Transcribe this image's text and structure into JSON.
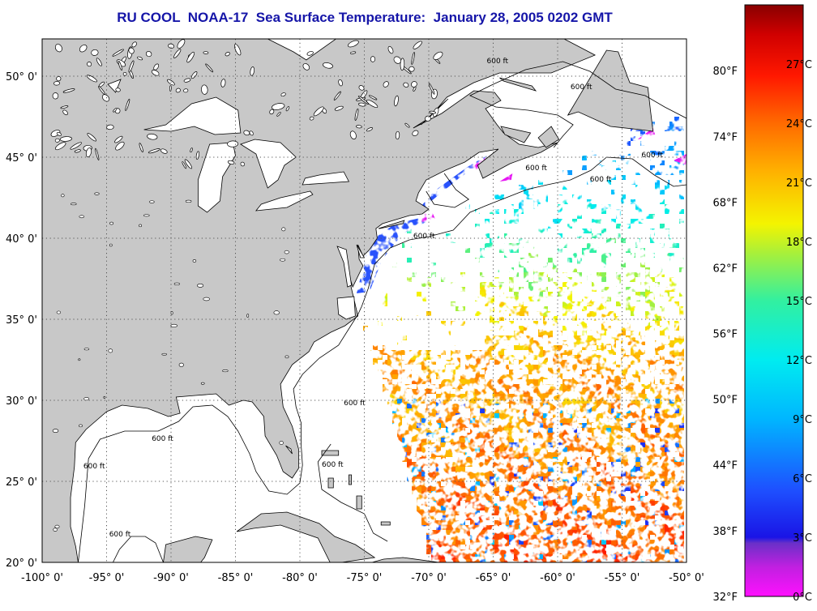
{
  "title": "RU COOL  NOAA-17  Sea Surface Temperature:  January 28, 2005 0202 GMT",
  "colors": {
    "title": "#1515a8",
    "land": "#c8c8c8",
    "ocean_no_data": "#ffffff",
    "coast": "#000000",
    "grid": "#555555"
  },
  "map": {
    "projection": "equirectangular",
    "lon_range": [
      -100,
      -50
    ],
    "lat_range": [
      20,
      52.3
    ],
    "grid_lines": "dotted",
    "lon_ticks": [
      "-100° 0'",
      "-95° 0'",
      "-90° 0'",
      "-85° 0'",
      "-80° 0'",
      "-75° 0'",
      "-70° 0'",
      "-65° 0'",
      "-60° 0'",
      "-55° 0'",
      "-50° 0'"
    ],
    "lat_ticks": [
      "20° 0'",
      "25° 0'",
      "30° 0'",
      "35° 0'",
      "40° 0'",
      "45° 0'",
      "50° 0'"
    ],
    "contour_label": "600 ft",
    "contour_labels": [
      {
        "text": "600 ft",
        "lon": -71.2,
        "lat": 40.0
      },
      {
        "text": "600 ft",
        "lon": -62.5,
        "lat": 44.2
      },
      {
        "text": "600 ft",
        "lon": -76.6,
        "lat": 29.7
      },
      {
        "text": "600 ft",
        "lon": -91.5,
        "lat": 27.5
      },
      {
        "text": "600 ft",
        "lon": -96.8,
        "lat": 25.8
      },
      {
        "text": "600 ft",
        "lon": -78.3,
        "lat": 25.9
      },
      {
        "text": "600 ft",
        "lon": -94.8,
        "lat": 21.6
      },
      {
        "text": "600 ft",
        "lon": -53.5,
        "lat": 45.0
      },
      {
        "text": "600 ft",
        "lon": -59.0,
        "lat": 49.2
      },
      {
        "text": "600 ft",
        "lon": -65.5,
        "lat": 50.8
      },
      {
        "text": "600 ft",
        "lon": -57.5,
        "lat": 43.5
      }
    ]
  },
  "colorbar": {
    "fahrenheit_labels": [
      {
        "text": "32°F",
        "value_c": 0
      },
      {
        "text": "38°F",
        "value_c": 3.33
      },
      {
        "text": "44°F",
        "value_c": 6.67
      },
      {
        "text": "50°F",
        "value_c": 10
      },
      {
        "text": "56°F",
        "value_c": 13.33
      },
      {
        "text": "62°F",
        "value_c": 16.67
      },
      {
        "text": "68°F",
        "value_c": 20
      },
      {
        "text": "74°F",
        "value_c": 23.33
      },
      {
        "text": "80°F",
        "value_c": 26.67
      }
    ],
    "celsius_labels": [
      {
        "text": "0°C",
        "value_c": 0
      },
      {
        "text": "3°C",
        "value_c": 3
      },
      {
        "text": "6°C",
        "value_c": 6
      },
      {
        "text": "9°C",
        "value_c": 9
      },
      {
        "text": "12°C",
        "value_c": 12
      },
      {
        "text": "15°C",
        "value_c": 15
      },
      {
        "text": "18°C",
        "value_c": 18
      },
      {
        "text": "21°C",
        "value_c": 21
      },
      {
        "text": "24°C",
        "value_c": 24
      },
      {
        "text": "27°C",
        "value_c": 27
      }
    ],
    "range_c": [
      0,
      30
    ],
    "gradient": [
      {
        "t": 0.0,
        "color": "#ff10ff"
      },
      {
        "t": 0.05,
        "color": "#c020e0"
      },
      {
        "t": 0.09,
        "color": "#6a30c8"
      },
      {
        "t": 0.1,
        "color": "#1a14e6"
      },
      {
        "t": 0.18,
        "color": "#1e50ff"
      },
      {
        "t": 0.3,
        "color": "#00b6ff"
      },
      {
        "t": 0.4,
        "color": "#00ecf0"
      },
      {
        "t": 0.5,
        "color": "#32f0a0"
      },
      {
        "t": 0.58,
        "color": "#a8f03a"
      },
      {
        "t": 0.63,
        "color": "#f4f400"
      },
      {
        "t": 0.72,
        "color": "#ffb000"
      },
      {
        "t": 0.8,
        "color": "#ff6a00"
      },
      {
        "t": 0.88,
        "color": "#ff1800"
      },
      {
        "t": 0.95,
        "color": "#d00000"
      },
      {
        "t": 1.0,
        "color": "#880000"
      }
    ]
  }
}
